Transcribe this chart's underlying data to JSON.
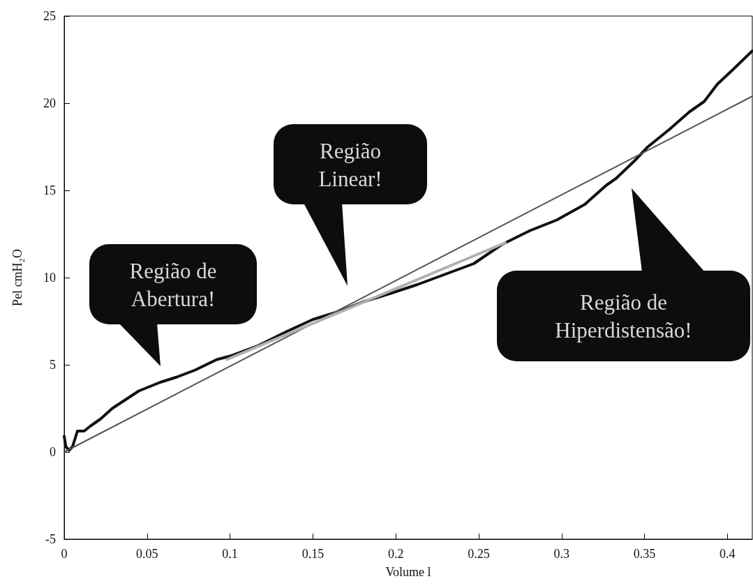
{
  "chart_data": {
    "type": "line",
    "xlabel": "Volume l",
    "ylabel": "Pel cmH₂O",
    "xlim": [
      0,
      0.415
    ],
    "ylim": [
      -5,
      25
    ],
    "xticks": [
      0,
      0.05,
      0.1,
      0.15,
      0.2,
      0.25,
      0.3,
      0.35,
      0.4
    ],
    "yticks": [
      -5,
      0,
      5,
      10,
      15,
      20,
      25
    ],
    "grid": false,
    "marker": "none",
    "line_style": "solid",
    "series": [
      {
        "color": "#111111",
        "x": [
          0,
          0.001,
          0.003,
          0.005,
          0.008,
          0.012,
          0.016,
          0.022,
          0.029,
          0.037,
          0.045,
          0.058,
          0.068,
          0.079,
          0.092,
          0.1,
          0.117,
          0.134,
          0.15,
          0.167,
          0.18,
          0.197,
          0.213,
          0.23,
          0.247,
          0.264,
          0.281,
          0.297,
          0.314,
          0.327,
          0.333,
          0.344,
          0.352,
          0.365,
          0.377,
          0.386,
          0.394,
          0.403,
          0.415
        ],
        "values": [
          0.9,
          0.3,
          0.1,
          0.3,
          1.2,
          1.2,
          1.5,
          1.9,
          2.5,
          3.0,
          3.5,
          4.0,
          4.3,
          4.7,
          5.3,
          5.5,
          6.1,
          6.9,
          7.6,
          8.1,
          8.6,
          9.1,
          9.6,
          10.2,
          10.8,
          11.9,
          12.7,
          13.3,
          14.2,
          15.3,
          15.7,
          16.7,
          17.5,
          18.5,
          19.5,
          20.1,
          21.1,
          21.9,
          23.0
        ]
      },
      {
        "color": "#555555",
        "x": [
          0,
          0.415
        ],
        "values": [
          0,
          20.4
        ]
      },
      {
        "color": "#b0b0b0",
        "x": [
          0.098,
          0.266
        ],
        "values": [
          5.3,
          12.0
        ]
      }
    ],
    "annotations": [
      "Região de\nAbertura!",
      "Região\nLinear!",
      "Região de\nHiperdistensão!"
    ]
  }
}
